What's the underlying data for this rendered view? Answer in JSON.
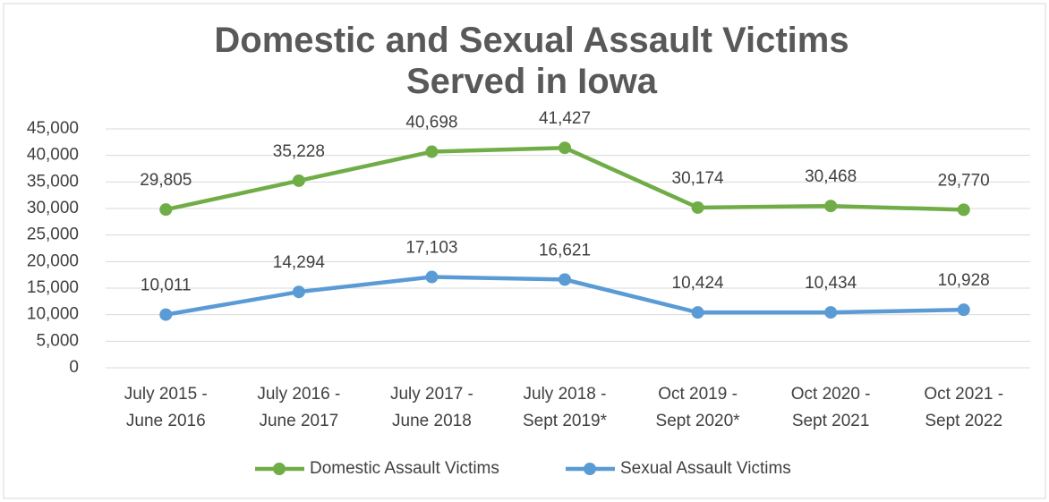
{
  "chart_data": {
    "type": "line",
    "title": "Domestic and Sexual Assault Victims Served in Iowa",
    "categories": [
      "July 2015 - June 2016",
      "July 2016 - June 2017",
      "July 2017 - June 2018",
      "July 2018 - Sept 2019*",
      "Oct 2019 - Sept 2020*",
      "Oct 2020 - Sept 2021",
      "Oct 2021 - Sept 2022"
    ],
    "series": [
      {
        "name": "Domestic Assault Victims",
        "color": "#70ad47",
        "values": [
          29805,
          35228,
          40698,
          41427,
          30174,
          30468,
          29770
        ],
        "value_labels": [
          "29,805",
          "35,228",
          "40,698",
          "41,427",
          "30,174",
          "30,468",
          "29,770"
        ]
      },
      {
        "name": "Sexual Assault Victims",
        "color": "#5b9bd5",
        "values": [
          10011,
          14294,
          17103,
          16621,
          10424,
          10434,
          10928
        ],
        "value_labels": [
          "10,011",
          "14,294",
          "17,103",
          "16,621",
          "10,424",
          "10,434",
          "10,928"
        ]
      }
    ],
    "ylim": [
      0,
      45000
    ],
    "yticks": [
      0,
      {
        "value": 5000,
        "label": "5,000"
      },
      {
        "value": 10000,
        "label": "10,000"
      },
      {
        "value": 15000,
        "label": "15,000"
      },
      {
        "value": 20000,
        "label": "20,000"
      },
      {
        "value": 25000,
        "label": "25,000"
      },
      {
        "value": 30000,
        "label": "30,000"
      },
      {
        "value": 35000,
        "label": "35,000"
      },
      {
        "value": 40000,
        "label": "40,000"
      },
      {
        "value": 45000,
        "label": "45,000"
      }
    ],
    "grid": true,
    "legend": "bottom"
  }
}
